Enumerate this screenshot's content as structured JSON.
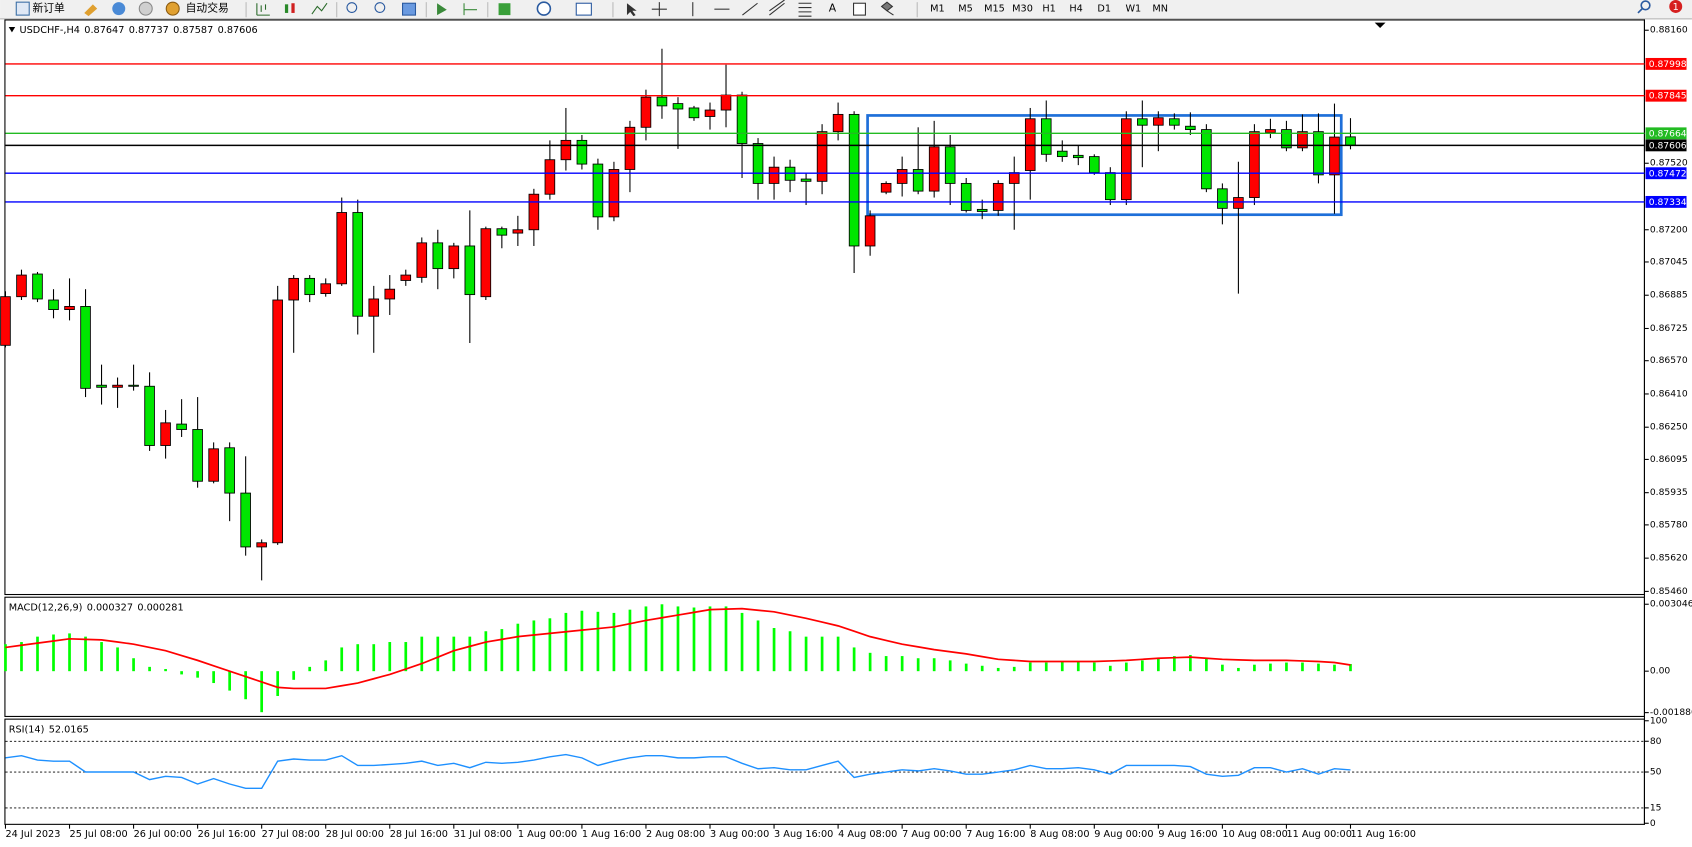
{
  "toolbar": {
    "new_order": "新订单",
    "auto_trading": "自动交易",
    "text_tool": "A",
    "timeframes": [
      "M1",
      "M5",
      "M15",
      "M30",
      "H1",
      "H4",
      "D1",
      "W1",
      "MN"
    ],
    "notifications": 1
  },
  "chart_data": [
    {
      "type": "candlestick",
      "title": "USDCHF-,H4",
      "categories": [
        "24 Jul 2023",
        null,
        null,
        null,
        "25 Jul 08:00",
        null,
        null,
        null,
        "26 Jul 00:00",
        null,
        null,
        null,
        "26 Jul 16:00",
        null,
        null,
        null,
        "27 Jul 08:00",
        null,
        null,
        null,
        "28 Jul 00:00",
        null,
        null,
        null,
        "28 Jul 16:00",
        null,
        null,
        null,
        "31 Jul 08:00",
        null,
        null,
        null,
        "1 Aug 00:00",
        null,
        null,
        null,
        "1 Aug 16:00",
        null,
        null,
        null,
        "2 Aug 08:00",
        null,
        null,
        null,
        "3 Aug 00:00",
        null,
        null,
        null,
        "3 Aug 16:00",
        null,
        null,
        null,
        "4 Aug 08:00",
        null,
        null,
        null,
        "7 Aug 00:00",
        null,
        null,
        null,
        "7 Aug 16:00",
        null,
        null,
        null,
        "8 Aug 08:00",
        null,
        null,
        null,
        "9 Aug 00:00",
        null,
        null,
        null,
        "9 Aug 16:00",
        null,
        null,
        null,
        "10 Aug 08:00",
        null,
        null,
        null,
        "11 Aug 00:00",
        null,
        null,
        null,
        "11 Aug 16:00"
      ],
      "open": [
        0.86644,
        0.86878,
        0.86987,
        0.86862,
        0.86816,
        0.86831,
        0.86452,
        0.86442,
        0.86452,
        0.86447,
        0.86162,
        0.86265,
        0.86239,
        0.8599,
        0.86151,
        0.85933,
        0.85674,
        0.85694,
        0.86862,
        0.86966,
        0.86893,
        0.8694,
        0.87283,
        0.86784,
        0.86867,
        0.86956,
        0.86971,
        0.87137,
        0.87013,
        0.87122,
        0.86878,
        0.87205,
        0.87184,
        0.872,
        0.87371,
        0.87537,
        0.8763,
        0.87516,
        0.87262,
        0.8749,
        0.87693,
        0.87838,
        0.87807,
        0.87786,
        0.87745,
        0.87776,
        0.87848,
        0.87615,
        0.87423,
        0.87501,
        0.87444,
        0.87433,
        0.87672,
        0.87755,
        0.87122,
        0.87381,
        0.87423,
        0.8749,
        0.87386,
        0.87599,
        0.87423,
        0.87298,
        0.87293,
        0.87423,
        0.87485,
        0.87734,
        0.87578,
        0.87558,
        0.87552,
        0.87475,
        0.87345,
        0.87734,
        0.87703,
        0.87734,
        0.87698,
        0.87682,
        0.87397,
        0.87303,
        0.87355,
        0.87667,
        0.87682,
        0.87594,
        0.87672,
        0.87464,
        0.87647
      ],
      "high": [
        0.86904,
        0.87008,
        0.86997,
        0.86914,
        0.86966,
        0.86914,
        0.86551,
        0.86489,
        0.86551,
        0.86514,
        0.86333,
        0.86385,
        0.86395,
        0.86177,
        0.86177,
        0.8611,
        0.8571,
        0.8693,
        0.86982,
        0.86982,
        0.86966,
        0.87355,
        0.87345,
        0.8693,
        0.86982,
        0.87008,
        0.87163,
        0.872,
        0.87137,
        0.87293,
        0.87215,
        0.87215,
        0.87267,
        0.87397,
        0.8763,
        0.87786,
        0.87656,
        0.87542,
        0.87527,
        0.87724,
        0.87874,
        0.88071,
        0.87838,
        0.87796,
        0.87812,
        0.87994,
        0.87864,
        0.87641,
        0.87552,
        0.87537,
        0.87475,
        0.87708,
        0.87812,
        0.8777,
        0.87293,
        0.87433,
        0.87552,
        0.87693,
        0.87724,
        0.87656,
        0.87449,
        0.87345,
        0.87438,
        0.87552,
        0.87786,
        0.87822,
        0.8763,
        0.87604,
        0.87563,
        0.87501,
        0.8777,
        0.87822,
        0.8777,
        0.8776,
        0.87765,
        0.87708,
        0.87423,
        0.87527,
        0.87708,
        0.87734,
        0.87724,
        0.87755,
        0.8776,
        0.87807,
        0.87737
      ],
      "low": [
        0.86634,
        0.86862,
        0.86852,
        0.86774,
        0.86764,
        0.86395,
        0.86359,
        0.86343,
        0.86426,
        0.86136,
        0.86099,
        0.86203,
        0.85959,
        0.8598,
        0.85798,
        0.85632,
        0.85513,
        0.85684,
        0.86608,
        0.86852,
        0.86878,
        0.8693,
        0.86696,
        0.86608,
        0.8679,
        0.8693,
        0.86945,
        0.86914,
        0.86966,
        0.86655,
        0.86862,
        0.87111,
        0.87122,
        0.87122,
        0.87345,
        0.87485,
        0.8749,
        0.872,
        0.87241,
        0.87381,
        0.8763,
        0.87734,
        0.87589,
        0.87724,
        0.87682,
        0.87693,
        0.87449,
        0.87345,
        0.87345,
        0.87381,
        0.87319,
        0.87371,
        0.8763,
        0.86992,
        0.87075,
        0.87371,
        0.8736,
        0.87371,
        0.87355,
        0.87319,
        0.87283,
        0.87251,
        0.87267,
        0.872,
        0.87345,
        0.87527,
        0.87527,
        0.87511,
        0.87464,
        0.87319,
        0.87319,
        0.87501,
        0.87578,
        0.87682,
        0.87656,
        0.87381,
        0.87226,
        0.86893,
        0.87319,
        0.87641,
        0.87578,
        0.87578,
        0.87423,
        0.87277,
        0.87587
      ],
      "close": [
        0.86878,
        0.86982,
        0.86867,
        0.86816,
        0.86831,
        0.86437,
        0.86442,
        0.86452,
        0.86447,
        0.86162,
        0.86271,
        0.86239,
        0.8599,
        0.86146,
        0.85933,
        0.85674,
        0.85694,
        0.86862,
        0.86966,
        0.86888,
        0.8694,
        0.87283,
        0.86784,
        0.86867,
        0.86914,
        0.86982,
        0.87137,
        0.87013,
        0.87122,
        0.86888,
        0.87205,
        0.87174,
        0.872,
        0.87371,
        0.87537,
        0.8763,
        0.87516,
        0.87262,
        0.8749,
        0.87693,
        0.87838,
        0.87796,
        0.87781,
        0.87739,
        0.87776,
        0.87848,
        0.87615,
        0.87423,
        0.87501,
        0.87438,
        0.87433,
        0.87672,
        0.87755,
        0.87122,
        0.87267,
        0.87423,
        0.8749,
        0.87386,
        0.87599,
        0.87423,
        0.87293,
        0.87288,
        0.87423,
        0.87475,
        0.87734,
        0.87563,
        0.87552,
        0.87547,
        0.87475,
        0.87345,
        0.87734,
        0.87703,
        0.87739,
        0.87703,
        0.87682,
        0.87397,
        0.87303,
        0.87355,
        0.87672,
        0.87682,
        0.87594,
        0.87672,
        0.87464,
        0.87646,
        0.87606
      ],
      "up_color": "#ff0000",
      "down_color": "#00e600",
      "ylim": [
        0.85445,
        0.88212
      ],
      "yticks": [
        {
          "value": 0.8816,
          "label": "0.88160"
        },
        {
          "value": 0.8752,
          "label": "0.87520"
        },
        {
          "value": 0.872,
          "label": "0.87200"
        },
        0.87045,
        0.86885,
        0.86725,
        {
          "value": 0.8657,
          "label": "0.86570"
        },
        {
          "value": 0.8641,
          "label": "0.86410"
        },
        {
          "value": 0.8625,
          "label": "0.86250"
        },
        0.86095,
        0.85935,
        {
          "value": 0.8578,
          "label": "0.85780"
        },
        {
          "value": 0.8562,
          "label": "0.85620"
        },
        {
          "value": 0.8546,
          "label": "0.85460"
        }
      ],
      "levels": [
        {
          "value": 0.87998,
          "color": "#ff0000"
        },
        {
          "value": 0.87845,
          "color": "#ff0000"
        },
        {
          "value": 0.87664,
          "color": "#22bb22"
        },
        {
          "value": 0.87606,
          "color": "#000000"
        },
        {
          "value": 0.87472,
          "color": "#0000ff"
        },
        {
          "value": 0.87334,
          "color": "#0000ff"
        }
      ]
    },
    {
      "type": "macd",
      "title": "MACD(12,26,9)",
      "histogram": {
        "color": "#00ff00",
        "values": [
          0.001228,
          0.001326,
          0.001571,
          0.001669,
          0.001719,
          0.001571,
          0.001326,
          0.00108,
          0.000589,
          0.000196,
          9.8e-05,
          -0.000147,
          -0.000295,
          -0.00054,
          -0.000884,
          -0.001277,
          -0.001866,
          -0.001129,
          -0.000393,
          0.000196,
          0.000491,
          0.00108,
          0.001228,
          0.001228,
          0.001326,
          0.001326,
          0.001571,
          0.001571,
          0.001571,
          0.001571,
          0.001817,
          0.001915,
          0.00216,
          0.002308,
          0.002406,
          0.002651,
          0.00275,
          0.002701,
          0.002651,
          0.002799,
          0.002946,
          0.003044,
          0.002946,
          0.002897,
          0.002946,
          0.002946,
          0.002651,
          0.002308,
          0.001964,
          0.001817,
          0.001571,
          0.001571,
          0.001571,
          0.00108,
          0.000835,
          0.000687,
          0.000687,
          0.000589,
          0.000589,
          0.000491,
          0.000344,
          0.000246,
          0.000147,
          0.000196,
          0.000393,
          0.000393,
          0.000442,
          0.000442,
          0.000393,
          0.000246,
          0.000393,
          0.000491,
          0.000589,
          0.000687,
          0.000737,
          0.000589,
          0.000295,
          0.000147,
          0.000295,
          0.000344,
          0.000393,
          0.000393,
          0.000344,
          0.000295,
          0.000327
        ]
      },
      "signal": {
        "color": "#ff0000",
        "values": [
          0.00108,
          0.001178,
          0.001277,
          0.001375,
          0.001473,
          0.001448,
          0.001424,
          0.001326,
          0.001228,
          0.00108,
          0.000933,
          0.000712,
          0.000491,
          0.000246,
          0,
          -0.000246,
          -0.000491,
          -0.000737,
          -0.000786,
          -0.000786,
          -0.000786,
          -0.000663,
          -0.00054,
          -0.000344,
          -0.000147,
          9.8e-05,
          0.000344,
          0.000638,
          0.000933,
          0.001129,
          0.001326,
          0.001448,
          0.001571,
          0.001645,
          0.001719,
          0.001792,
          0.001866,
          0.001939,
          0.002013,
          0.00216,
          0.002308,
          0.00243,
          0.002553,
          0.002676,
          0.002799,
          0.002823,
          0.002848,
          0.002774,
          0.002701,
          0.002553,
          0.002406,
          0.002234,
          0.002062,
          0.001817,
          0.001571,
          0.001399,
          0.001228,
          0.001105,
          0.000982,
          0.000884,
          0.000786,
          0.000663,
          0.00054,
          0.000491,
          0.000442,
          0.000442,
          0.000442,
          0.000442,
          0.000442,
          0.000466,
          0.000491,
          0.00054,
          0.000589,
          0.000614,
          0.000638,
          0.000589,
          0.00054,
          0.000516,
          0.000491,
          0.000491,
          0.000491,
          0.000466,
          0.000442,
          0.000393,
          0.000281
        ]
      },
      "ylim": [
        -0.00206,
        0.00339
      ],
      "yticks": [
        0.003046,
        {
          "value": 0,
          "label": "0.00"
        },
        -0.001886
      ]
    },
    {
      "type": "line",
      "title": "RSI(14)",
      "color": "#1e90ff",
      "values": [
        63.8,
        65.9,
        61.7,
        60.6,
        60.6,
        50,
        50,
        50,
        50,
        42.6,
        45.8,
        44.7,
        38.3,
        43.6,
        38.3,
        34.1,
        34.1,
        60.6,
        62.7,
        61.7,
        61.7,
        65.9,
        56.4,
        56.4,
        57.4,
        58.5,
        60.6,
        56.4,
        58.5,
        54.2,
        59.5,
        58.5,
        59.5,
        61.7,
        64.8,
        67,
        63.8,
        56.4,
        60.6,
        63.8,
        65.9,
        65.9,
        63.8,
        63.8,
        64.8,
        64.8,
        58.5,
        53.2,
        54.2,
        52.1,
        52.1,
        56.4,
        60.6,
        44.7,
        47.9,
        50,
        52.1,
        51.1,
        53.2,
        51.1,
        47.9,
        47.9,
        50,
        52.1,
        56.4,
        53.2,
        53.2,
        54.2,
        52.1,
        47.9,
        56.4,
        56.4,
        56.4,
        56.4,
        55.3,
        47.9,
        45.8,
        46.8,
        54.2,
        54.2,
        50,
        53.2,
        47.9,
        53.2,
        52.0165
      ],
      "ylim": [
        0,
        100
      ],
      "yticks": [
        100,
        80,
        50,
        15,
        0
      ],
      "levels": [
        80,
        50,
        15
      ]
    }
  ]
}
